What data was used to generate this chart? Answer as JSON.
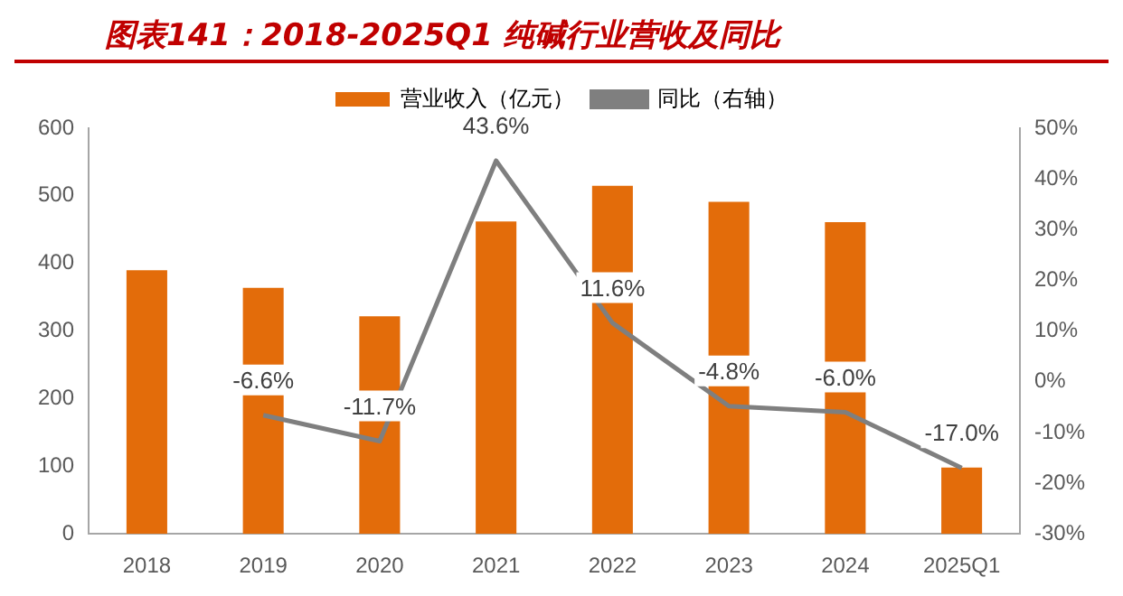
{
  "chart_data": {
    "type": "bar",
    "title": "图表141：2018-2025Q1 纯碱行业营收及同比",
    "categories": [
      "2018",
      "2019",
      "2020",
      "2021",
      "2022",
      "2023",
      "2024",
      "2025Q1"
    ],
    "series": [
      {
        "name": "营业收入（亿元）",
        "color": "#e36c0a",
        "values": [
          390,
          364,
          322,
          462,
          515,
          491,
          461,
          98
        ]
      },
      {
        "name": "同比（右轴）",
        "type": "line",
        "axis": "y2",
        "color": "#7f7f7f",
        "marker": "none",
        "values": [
          null,
          -6.6,
          -11.7,
          43.6,
          11.6,
          -4.8,
          -6.0,
          -17.0
        ],
        "value_labels": [
          null,
          "-6.6%",
          "-11.7%",
          "43.6%",
          "11.6%",
          "-4.8%",
          "-6.0%",
          "-17.0%"
        ]
      }
    ],
    "ylim": [
      0,
      600
    ],
    "yticks": [
      0,
      100,
      200,
      300,
      400,
      500,
      600
    ],
    "y2lim": [
      -30,
      50
    ],
    "y2ticks": [
      {
        "value": -30,
        "label": "-30%"
      },
      {
        "value": -20,
        "label": "-20%"
      },
      {
        "value": -10,
        "label": "-10%"
      },
      {
        "value": 0,
        "label": "0%"
      },
      {
        "value": 10,
        "label": "10%"
      },
      {
        "value": 20,
        "label": "20%"
      },
      {
        "value": 30,
        "label": "30%"
      },
      {
        "value": 40,
        "label": "40%"
      },
      {
        "value": 50,
        "label": "50%"
      }
    ],
    "grid": false,
    "legend": "top"
  }
}
